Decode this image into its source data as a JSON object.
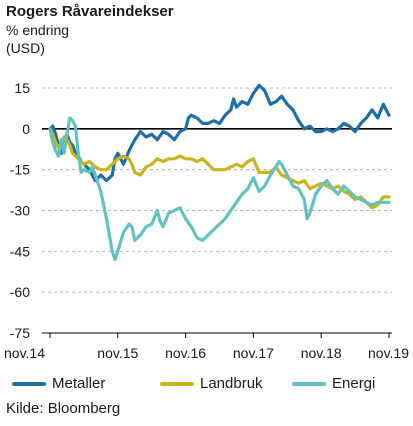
{
  "chart_data": {
    "type": "line",
    "title": "Rogers Råvareindekser",
    "subtitle": "% endring",
    "unit": "(USD)",
    "source": "Kilde: Bloomberg",
    "ylim": [
      -75,
      15
    ],
    "yticks": [
      15,
      0,
      -15,
      -30,
      -45,
      -60,
      -75
    ],
    "xticks": [
      "nov.14",
      "nov.15",
      "nov.16",
      "nov.17",
      "nov.18",
      "nov.19"
    ],
    "xlim": [
      0,
      60
    ],
    "grid": "horizontal dashed",
    "legend_position": "bottom",
    "series": [
      {
        "name": "Metaller",
        "color": "#1f6fa6",
        "points": [
          [
            0,
            0
          ],
          [
            0.5,
            1
          ],
          [
            1,
            -2
          ],
          [
            1.5,
            -6
          ],
          [
            2,
            -9
          ],
          [
            2.5,
            -4
          ],
          [
            3,
            -2
          ],
          [
            3.5,
            -5
          ],
          [
            4,
            -6
          ],
          [
            4.5,
            -9
          ],
          [
            5,
            -10
          ],
          [
            5.5,
            -12
          ],
          [
            6,
            -13
          ],
          [
            7,
            -15
          ],
          [
            8,
            -19
          ],
          [
            9,
            -17
          ],
          [
            10,
            -19
          ],
          [
            11,
            -17
          ],
          [
            11.5,
            -11
          ],
          [
            12,
            -9
          ],
          [
            12.5,
            -11
          ],
          [
            13,
            -13
          ],
          [
            14,
            -8
          ],
          [
            15,
            -4
          ],
          [
            16,
            -1
          ],
          [
            17,
            -3
          ],
          [
            18,
            -2
          ],
          [
            19,
            -4
          ],
          [
            20,
            -1
          ],
          [
            21,
            -2
          ],
          [
            22,
            -4
          ],
          [
            23,
            -1
          ],
          [
            24,
            0
          ],
          [
            24.5,
            4
          ],
          [
            25,
            5
          ],
          [
            26,
            4
          ],
          [
            27,
            2
          ],
          [
            28,
            2
          ],
          [
            29,
            3
          ],
          [
            30,
            2
          ],
          [
            31,
            5
          ],
          [
            32,
            7
          ],
          [
            32.5,
            11
          ],
          [
            33,
            8
          ],
          [
            34,
            10
          ],
          [
            35,
            9
          ],
          [
            36,
            13
          ],
          [
            37,
            16
          ],
          [
            38,
            14
          ],
          [
            39,
            9
          ],
          [
            40,
            10
          ],
          [
            41,
            12
          ],
          [
            42,
            9
          ],
          [
            43,
            7
          ],
          [
            44,
            3
          ],
          [
            45,
            0
          ],
          [
            46,
            1
          ],
          [
            47,
            -1
          ],
          [
            48,
            -1
          ],
          [
            49,
            0
          ],
          [
            50,
            -1
          ],
          [
            51,
            0
          ],
          [
            52,
            2
          ],
          [
            53,
            1
          ],
          [
            54,
            -1
          ],
          [
            55,
            2
          ],
          [
            56,
            4
          ],
          [
            57,
            7
          ],
          [
            58,
            4
          ],
          [
            59,
            9
          ],
          [
            60,
            5
          ]
        ]
      },
      {
        "name": "Landbruk",
        "color": "#c9b41a",
        "points": [
          [
            0,
            0
          ],
          [
            0.5,
            -2
          ],
          [
            1,
            -5
          ],
          [
            1.5,
            -7
          ],
          [
            2,
            -6
          ],
          [
            2.5,
            -3
          ],
          [
            3,
            -4
          ],
          [
            3.5,
            -6
          ],
          [
            4,
            -9
          ],
          [
            5,
            -11
          ],
          [
            6,
            -13
          ],
          [
            7,
            -12
          ],
          [
            8,
            -14
          ],
          [
            9,
            -15
          ],
          [
            10,
            -15
          ],
          [
            11,
            -13
          ],
          [
            12,
            -11
          ],
          [
            13,
            -10
          ],
          [
            14,
            -11
          ],
          [
            14.5,
            -13
          ],
          [
            15,
            -16
          ],
          [
            16,
            -17
          ],
          [
            17,
            -14
          ],
          [
            18,
            -13
          ],
          [
            19,
            -11
          ],
          [
            20,
            -12
          ],
          [
            21,
            -11
          ],
          [
            22,
            -11
          ],
          [
            23,
            -10
          ],
          [
            24,
            -11
          ],
          [
            25,
            -11
          ],
          [
            26,
            -12
          ],
          [
            27,
            -11
          ],
          [
            28,
            -13
          ],
          [
            29,
            -15
          ],
          [
            30,
            -15
          ],
          [
            31,
            -15
          ],
          [
            32,
            -14
          ],
          [
            33,
            -13
          ],
          [
            34,
            -14
          ],
          [
            35,
            -12
          ],
          [
            36,
            -11
          ],
          [
            37,
            -16
          ],
          [
            38,
            -16
          ],
          [
            39,
            -16
          ],
          [
            40,
            -14
          ],
          [
            41,
            -17
          ],
          [
            42,
            -18
          ],
          [
            43,
            -19
          ],
          [
            44,
            -20
          ],
          [
            45,
            -19
          ],
          [
            46,
            -22
          ],
          [
            47,
            -21
          ],
          [
            48,
            -20
          ],
          [
            49,
            -21
          ],
          [
            50,
            -22
          ],
          [
            51,
            -21
          ],
          [
            52,
            -23
          ],
          [
            53,
            -24
          ],
          [
            54,
            -26
          ],
          [
            55,
            -25
          ],
          [
            56,
            -27
          ],
          [
            57,
            -29
          ],
          [
            58,
            -28
          ],
          [
            59,
            -25
          ],
          [
            60,
            -25
          ]
        ]
      },
      {
        "name": "Energi",
        "color": "#62c2bf",
        "points": [
          [
            0,
            0
          ],
          [
            0.5,
            -5
          ],
          [
            1,
            -8
          ],
          [
            1.5,
            -10
          ],
          [
            2,
            -4
          ],
          [
            2.5,
            -9
          ],
          [
            3,
            -2
          ],
          [
            3.5,
            4
          ],
          [
            4,
            3
          ],
          [
            4.5,
            1
          ],
          [
            5,
            -9
          ],
          [
            5.5,
            -16
          ],
          [
            6,
            -15
          ],
          [
            7,
            -16
          ],
          [
            7.5,
            -14
          ],
          [
            8,
            -17
          ],
          [
            9,
            -23
          ],
          [
            10,
            -33
          ],
          [
            11,
            -45
          ],
          [
            11.5,
            -48
          ],
          [
            12,
            -45
          ],
          [
            13,
            -38
          ],
          [
            14,
            -35
          ],
          [
            14.5,
            -36
          ],
          [
            15,
            -41
          ],
          [
            16,
            -39
          ],
          [
            17,
            -36
          ],
          [
            18,
            -35
          ],
          [
            19,
            -30
          ],
          [
            19.5,
            -34
          ],
          [
            20,
            -36
          ],
          [
            21,
            -31
          ],
          [
            22,
            -30
          ],
          [
            23,
            -29
          ],
          [
            24,
            -33
          ],
          [
            25,
            -36
          ],
          [
            26,
            -40
          ],
          [
            27,
            -41
          ],
          [
            28,
            -39
          ],
          [
            29,
            -37
          ],
          [
            30,
            -35
          ],
          [
            31,
            -33
          ],
          [
            32,
            -30
          ],
          [
            33,
            -27
          ],
          [
            34,
            -24
          ],
          [
            35,
            -22
          ],
          [
            36,
            -18
          ],
          [
            37,
            -23
          ],
          [
            38,
            -21
          ],
          [
            39,
            -17
          ],
          [
            40,
            -14
          ],
          [
            40.5,
            -12
          ],
          [
            41,
            -13
          ],
          [
            42,
            -17
          ],
          [
            43,
            -21
          ],
          [
            44,
            -22
          ],
          [
            45,
            -26
          ],
          [
            45.5,
            -33
          ],
          [
            46,
            -31
          ],
          [
            47,
            -24
          ],
          [
            48,
            -21
          ],
          [
            49,
            -19
          ],
          [
            50,
            -22
          ],
          [
            51,
            -24
          ],
          [
            52,
            -21
          ],
          [
            53,
            -23
          ],
          [
            54,
            -25
          ],
          [
            55,
            -26
          ],
          [
            56,
            -27
          ],
          [
            57,
            -28
          ],
          [
            58,
            -27
          ],
          [
            59,
            -27
          ],
          [
            60,
            -27
          ]
        ]
      }
    ]
  }
}
